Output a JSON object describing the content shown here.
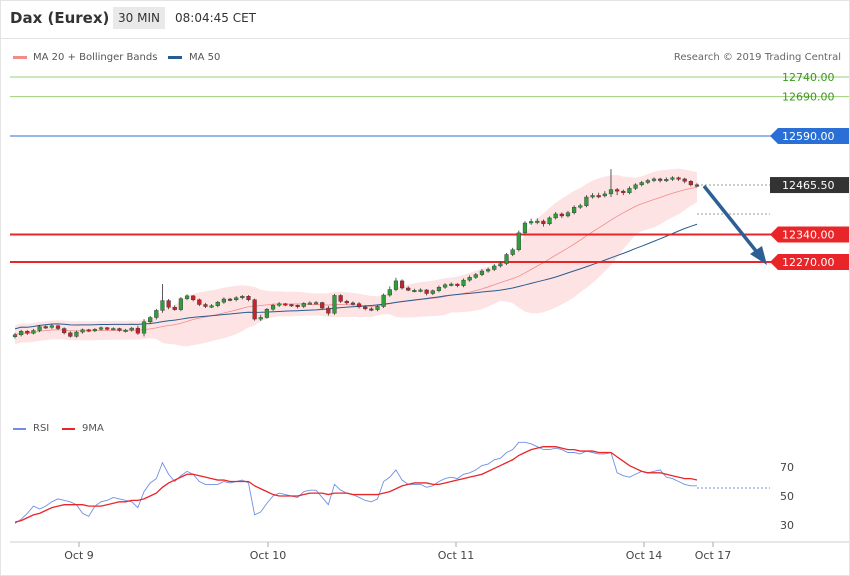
{
  "header": {
    "title": "Dax (Eurex)",
    "timeframe": "30 MIN",
    "time": "08:04:45 CET"
  },
  "legend": {
    "bb_label": "MA 20 + Bollinger Bands",
    "ma50_label": "MA 50",
    "copyright": "Research © 2019 Trading Central",
    "rsi_label": "RSI",
    "ma9_label": "9MA"
  },
  "colors": {
    "bollinger": "#f38b8b",
    "ma50": "#2a5d8f",
    "resistance_thin": "#9bcf7a",
    "resistance_mid": "#2a6fd6",
    "support": "#e8262a",
    "arrow": "#2e5e96",
    "rsi": "#6f8fe0",
    "rsi_ma": "#e8262a"
  },
  "chart_data": [
    {
      "type": "candlestick",
      "panel": "price",
      "x_labels": [
        "Oct 9",
        "Oct 10",
        "Oct 11",
        "Oct 14",
        "Oct 17"
      ],
      "ylim": [
        12030,
        12780
      ],
      "levels": [
        {
          "value": 12740.0,
          "label": "12740.00",
          "kind": "resistance"
        },
        {
          "value": 12690.0,
          "label": "12690.00",
          "kind": "resistance"
        },
        {
          "value": 12590.0,
          "label": "12590.00",
          "kind": "pivot"
        },
        {
          "value": 12465.5,
          "label": "12465.50",
          "kind": "last"
        },
        {
          "value": 12340.0,
          "label": "12340.00",
          "kind": "support"
        },
        {
          "value": 12270.0,
          "label": "12270.00",
          "kind": "support"
        }
      ],
      "closes": [
        12085,
        12094,
        12089,
        12096,
        12106,
        12104,
        12108,
        12101,
        12090,
        12081,
        12092,
        12098,
        12095,
        12099,
        12103,
        12099,
        12101,
        12096,
        12097,
        12102,
        12089,
        12118,
        12129,
        12147,
        12172,
        12155,
        12149,
        12177,
        12184,
        12174,
        12162,
        12157,
        12159,
        12168,
        12176,
        12174,
        12179,
        12183,
        12174,
        12125,
        12129,
        12150,
        12160,
        12164,
        12162,
        12160,
        12157,
        12165,
        12166,
        12167,
        12153,
        12140,
        12185,
        12170,
        12166,
        12164,
        12156,
        12151,
        12149,
        12157,
        12186,
        12200,
        12222,
        12204,
        12198,
        12198,
        12199,
        12190,
        12197,
        12206,
        12212,
        12214,
        12210,
        12224,
        12231,
        12238,
        12247,
        12251,
        12260,
        12266,
        12289,
        12301,
        12344,
        12369,
        12373,
        12374,
        12367,
        12382,
        12392,
        12387,
        12395,
        12409,
        12413,
        12435,
        12439,
        12438,
        12443,
        12454,
        12450,
        12446,
        12457,
        12466,
        12472,
        12477,
        12481,
        12477,
        12480,
        12484,
        12481,
        12475,
        12466,
        12465
      ],
      "opens": [
        12080,
        12085,
        12094,
        12089,
        12096,
        12106,
        12104,
        12108,
        12101,
        12090,
        12081,
        12092,
        12098,
        12095,
        12099,
        12103,
        12099,
        12101,
        12096,
        12097,
        12102,
        12089,
        12118,
        12129,
        12147,
        12172,
        12155,
        12149,
        12177,
        12184,
        12174,
        12162,
        12157,
        12159,
        12168,
        12176,
        12174,
        12179,
        12183,
        12174,
        12125,
        12129,
        12150,
        12160,
        12164,
        12162,
        12160,
        12157,
        12165,
        12166,
        12167,
        12153,
        12140,
        12185,
        12170,
        12166,
        12164,
        12156,
        12151,
        12149,
        12157,
        12186,
        12200,
        12222,
        12204,
        12198,
        12198,
        12199,
        12190,
        12197,
        12206,
        12212,
        12214,
        12210,
        12224,
        12231,
        12238,
        12247,
        12251,
        12260,
        12266,
        12289,
        12301,
        12344,
        12369,
        12373,
        12374,
        12367,
        12382,
        12392,
        12387,
        12395,
        12409,
        12413,
        12435,
        12439,
        12438,
        12443,
        12454,
        12450,
        12446,
        12457,
        12466,
        12472,
        12477,
        12481,
        12477,
        12480,
        12484,
        12481,
        12475,
        12466
      ],
      "highs": [
        12090,
        12098,
        12097,
        12100,
        12110,
        12109,
        12112,
        12110,
        12104,
        12094,
        12096,
        12101,
        12100,
        12102,
        12106,
        12105,
        12104,
        12103,
        12100,
        12105,
        12108,
        12125,
        12133,
        12151,
        12214,
        12176,
        12160,
        12181,
        12188,
        12186,
        12177,
        12166,
        12163,
        12171,
        12180,
        12179,
        12183,
        12186,
        12186,
        12177,
        12136,
        12153,
        12164,
        12168,
        12166,
        12164,
        12162,
        12168,
        12170,
        12171,
        12169,
        12158,
        12189,
        12188,
        12174,
        12170,
        12168,
        12160,
        12155,
        12161,
        12190,
        12208,
        12230,
        12226,
        12208,
        12202,
        12203,
        12201,
        12200,
        12210,
        12216,
        12218,
        12216,
        12228,
        12236,
        12242,
        12252,
        12256,
        12265,
        12271,
        12293,
        12306,
        12350,
        12374,
        12380,
        12381,
        12378,
        12386,
        12397,
        12396,
        12400,
        12414,
        12418,
        12440,
        12445,
        12446,
        12450,
        12506,
        12458,
        12454,
        12462,
        12470,
        12476,
        12481,
        12485,
        12484,
        12485,
        12488,
        12487,
        12484,
        12478,
        12470
      ],
      "lows": [
        12076,
        12081,
        12085,
        12086,
        12092,
        12100,
        12100,
        12097,
        12086,
        12078,
        12078,
        12088,
        12092,
        12092,
        12096,
        12096,
        12096,
        12093,
        12091,
        12093,
        12085,
        12081,
        12112,
        12124,
        12141,
        12150,
        12146,
        12145,
        12173,
        12170,
        12158,
        12153,
        12153,
        12155,
        12164,
        12170,
        12170,
        12175,
        12170,
        12121,
        12120,
        12126,
        12146,
        12156,
        12158,
        12156,
        12152,
        12153,
        12162,
        12162,
        12150,
        12134,
        12136,
        12166,
        12162,
        12160,
        12152,
        12147,
        12145,
        12145,
        12153,
        12182,
        12196,
        12200,
        12196,
        12193,
        12193,
        12185,
        12186,
        12193,
        12202,
        12208,
        12206,
        12206,
        12220,
        12227,
        12234,
        12243,
        12247,
        12256,
        12262,
        12285,
        12297,
        12340,
        12364,
        12366,
        12360,
        12363,
        12378,
        12382,
        12383,
        12391,
        12405,
        12409,
        12431,
        12432,
        12434,
        12435,
        12440,
        12440,
        12442,
        12453,
        12462,
        12468,
        12473,
        12472,
        12473,
        12476,
        12476,
        12470,
        12462,
        12460
      ]
    },
    {
      "type": "line",
      "panel": "rsi",
      "ylim": [
        20,
        90
      ],
      "y_ticks": [
        30,
        50,
        70
      ],
      "series": [
        {
          "name": "RSI",
          "values": [
            31,
            34,
            38,
            43,
            41,
            43,
            46,
            48,
            47,
            46,
            44,
            38,
            36,
            43,
            46,
            47,
            49,
            48,
            47,
            46,
            42,
            53,
            59,
            62,
            73,
            65,
            60,
            64,
            67,
            65,
            60,
            58,
            58,
            58,
            60,
            59,
            60,
            61,
            59,
            37,
            39,
            45,
            50,
            52,
            51,
            50,
            49,
            53,
            54,
            54,
            49,
            44,
            58,
            54,
            52,
            51,
            49,
            47,
            46,
            48,
            60,
            63,
            68,
            61,
            58,
            58,
            58,
            56,
            57,
            60,
            62,
            63,
            62,
            65,
            66,
            68,
            71,
            72,
            75,
            76,
            80,
            82,
            87,
            87,
            86,
            84,
            82,
            82,
            83,
            82,
            80,
            80,
            79,
            81,
            80,
            79,
            79,
            80,
            66,
            64,
            63,
            65,
            67,
            66,
            67,
            68,
            63,
            62,
            60,
            58,
            57,
            57
          ]
        },
        {
          "name": "9MA",
          "values": [
            32,
            33,
            35,
            37,
            38,
            40,
            42,
            43,
            44,
            44,
            44,
            44,
            43,
            43,
            43,
            44,
            45,
            46,
            46,
            47,
            47,
            48,
            50,
            52,
            56,
            59,
            61,
            63,
            65,
            65,
            64,
            63,
            62,
            61,
            61,
            60,
            60,
            60,
            60,
            57,
            55,
            53,
            51,
            50,
            50,
            50,
            50,
            51,
            52,
            52,
            52,
            51,
            52,
            52,
            52,
            51,
            51,
            51,
            51,
            51,
            52,
            53,
            55,
            57,
            58,
            59,
            59,
            59,
            58,
            58,
            59,
            60,
            61,
            62,
            63,
            64,
            65,
            67,
            69,
            71,
            73,
            75,
            78,
            80,
            82,
            83,
            84,
            84,
            84,
            83,
            82,
            82,
            81,
            81,
            81,
            80,
            80,
            80,
            77,
            74,
            71,
            69,
            67,
            66,
            66,
            66,
            65,
            64,
            63,
            62,
            62,
            61
          ]
        }
      ]
    }
  ]
}
